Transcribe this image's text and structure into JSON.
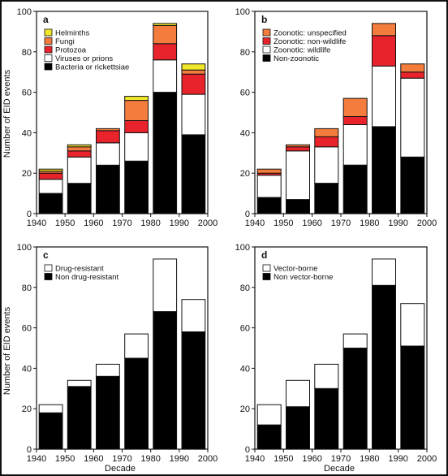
{
  "figure": {
    "ylabel": "Number of EID events",
    "xlabel": "Decade"
  },
  "chart_data": [
    {
      "id": "a",
      "type": "bar",
      "stacked": true,
      "panel_label": "a",
      "categories": [
        "1940",
        "1950",
        "1960",
        "1970",
        "1980",
        "1990"
      ],
      "xticks": [
        "1940",
        "1950",
        "1960",
        "1970",
        "1980",
        "1990",
        "2000"
      ],
      "xlim": [
        1940,
        2000
      ],
      "ylim": [
        0,
        100
      ],
      "yticks": [
        0,
        20,
        40,
        60,
        80,
        100
      ],
      "legend_position": "top-left",
      "series": [
        {
          "name": "Bacteria or rickettsiae",
          "color": "#000000",
          "values": [
            10,
            15,
            24,
            26,
            60,
            39
          ]
        },
        {
          "name": "Viruses or prions",
          "color": "#ffffff",
          "values": [
            7,
            13,
            11,
            14,
            16,
            20
          ]
        },
        {
          "name": "Protozoa",
          "color": "#e8232b",
          "values": [
            3,
            3,
            6,
            6,
            8,
            10
          ]
        },
        {
          "name": "Fungi",
          "color": "#f47c3c",
          "values": [
            1,
            2,
            1,
            10,
            9,
            2
          ]
        },
        {
          "name": "Helminths",
          "color": "#f0e62a",
          "values": [
            1,
            1,
            0,
            2,
            1,
            3
          ]
        }
      ]
    },
    {
      "id": "b",
      "type": "bar",
      "stacked": true,
      "panel_label": "b",
      "categories": [
        "1940",
        "1950",
        "1960",
        "1970",
        "1980",
        "1990"
      ],
      "xticks": [
        "1940",
        "1950",
        "1960",
        "1970",
        "1980",
        "1990",
        "2000"
      ],
      "xlim": [
        1940,
        2000
      ],
      "ylim": [
        0,
        100
      ],
      "yticks": [
        0,
        20,
        40,
        60,
        80,
        100
      ],
      "legend_position": "top-left",
      "series": [
        {
          "name": "Non-zoonotic",
          "color": "#000000",
          "values": [
            8,
            7,
            15,
            24,
            43,
            28
          ]
        },
        {
          "name": "Zoonotic: wildlife",
          "color": "#ffffff",
          "values": [
            11,
            24,
            18,
            20,
            30,
            39
          ]
        },
        {
          "name": "Zoonotic: non-wildlife",
          "color": "#e8232b",
          "values": [
            1,
            2,
            5,
            4,
            15,
            3
          ]
        },
        {
          "name": "Zoonotic: unspecified",
          "color": "#f47c3c",
          "values": [
            2,
            1,
            4,
            9,
            6,
            4
          ]
        }
      ]
    },
    {
      "id": "c",
      "type": "bar",
      "stacked": true,
      "panel_label": "c",
      "categories": [
        "1940",
        "1950",
        "1960",
        "1970",
        "1980",
        "1990"
      ],
      "xticks": [
        "1940",
        "1950",
        "1960",
        "1970",
        "1980",
        "1990",
        "2000"
      ],
      "xlim": [
        1940,
        2000
      ],
      "ylim": [
        0,
        100
      ],
      "yticks": [
        0,
        20,
        40,
        60,
        80,
        100
      ],
      "legend_position": "top-left",
      "series": [
        {
          "name": "Non drug-resistant",
          "color": "#000000",
          "values": [
            18,
            31,
            36,
            45,
            68,
            58
          ]
        },
        {
          "name": "Drug-resistant",
          "color": "#ffffff",
          "values": [
            4,
            3,
            6,
            12,
            26,
            16
          ]
        }
      ]
    },
    {
      "id": "d",
      "type": "bar",
      "stacked": true,
      "panel_label": "d",
      "categories": [
        "1940",
        "1950",
        "1960",
        "1970",
        "1980",
        "1990"
      ],
      "xticks": [
        "1940",
        "1950",
        "1960",
        "1970",
        "1980",
        "1990",
        "2000"
      ],
      "xlim": [
        1940,
        2000
      ],
      "ylim": [
        0,
        100
      ],
      "yticks": [
        0,
        20,
        40,
        60,
        80,
        100
      ],
      "legend_position": "top-left",
      "series": [
        {
          "name": "Non vector-borne",
          "color": "#000000",
          "values": [
            12,
            21,
            30,
            50,
            81,
            51
          ]
        },
        {
          "name": "Vector-borne",
          "color": "#ffffff",
          "values": [
            10,
            13,
            12,
            7,
            13,
            21
          ]
        }
      ]
    }
  ]
}
